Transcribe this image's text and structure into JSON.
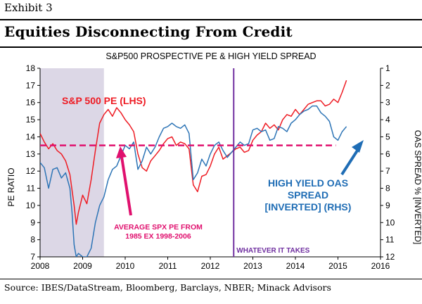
{
  "header": {
    "exhibit": "Exhibit 3",
    "title": "Equities Disconnecting From Credit",
    "source": "Source: IBES/DataStream, Bloomberg, Barclays, NBER; Minack Advisors"
  },
  "chart_data": {
    "type": "line",
    "title": "S&P500 PROSPECTIVE PE & HIGH YIELD SPREAD",
    "ylabel": "PE RATIO",
    "y2label": "OAS SPREAD % [INVERTED]",
    "ylim": [
      7,
      18
    ],
    "y2lim": [
      12,
      1
    ],
    "xlim": [
      2008,
      2016
    ],
    "x_ticks": [
      "2008",
      "2009",
      "2010",
      "2011",
      "2012",
      "2013",
      "2014",
      "2015",
      "2016"
    ],
    "y_ticks": [
      "7",
      "8",
      "9",
      "10",
      "11",
      "12",
      "13",
      "14",
      "15",
      "16",
      "17",
      "18"
    ],
    "y2_ticks": [
      "1",
      "2",
      "3",
      "4",
      "5",
      "6",
      "7",
      "8",
      "9",
      "10",
      "11",
      "12"
    ],
    "recession_band": [
      2008.0,
      2009.5
    ],
    "reference_line": {
      "value": 13.5,
      "label": "AVERAGE SPX PE FROM 1985 EX 1998-2006",
      "color": "#e0106e"
    },
    "event_line": {
      "x": 2012.55,
      "label": "WHATEVER IT TAKES",
      "color": "#7030a0"
    },
    "series": [
      {
        "name": "S&P 500 PE (LHS)",
        "axis": "left",
        "color": "#ee1c24",
        "x": [
          2008.0,
          2008.1,
          2008.2,
          2008.3,
          2008.4,
          2008.5,
          2008.6,
          2008.7,
          2008.8,
          2008.85,
          2008.9,
          2009.0,
          2009.1,
          2009.2,
          2009.3,
          2009.4,
          2009.5,
          2009.6,
          2009.7,
          2009.8,
          2009.9,
          2010.0,
          2010.1,
          2010.2,
          2010.3,
          2010.4,
          2010.5,
          2010.6,
          2010.7,
          2010.8,
          2010.9,
          2011.0,
          2011.1,
          2011.2,
          2011.3,
          2011.4,
          2011.5,
          2011.6,
          2011.7,
          2011.8,
          2011.9,
          2012.0,
          2012.1,
          2012.2,
          2012.3,
          2012.4,
          2012.5,
          2012.6,
          2012.7,
          2012.8,
          2012.9,
          2013.0,
          2013.1,
          2013.2,
          2013.3,
          2013.4,
          2013.5,
          2013.6,
          2013.7,
          2013.8,
          2013.9,
          2014.0,
          2014.1,
          2014.2,
          2014.3,
          2014.4,
          2014.5,
          2014.6,
          2014.7,
          2014.8,
          2014.9,
          2015.0,
          2015.1,
          2015.2
        ],
        "y": [
          14.2,
          13.7,
          13.3,
          13.6,
          13.2,
          13.0,
          12.6,
          11.8,
          10.0,
          8.9,
          9.6,
          10.6,
          10.1,
          11.5,
          13.2,
          14.8,
          15.3,
          15.6,
          15.2,
          15.7,
          15.4,
          15.0,
          14.7,
          14.3,
          13.0,
          12.2,
          12.0,
          12.6,
          12.9,
          13.2,
          13.6,
          13.9,
          14.0,
          13.5,
          13.7,
          13.6,
          13.3,
          11.2,
          10.8,
          11.7,
          11.8,
          12.3,
          13.0,
          13.4,
          12.7,
          12.9,
          13.1,
          13.3,
          13.4,
          13.1,
          13.2,
          13.8,
          14.1,
          14.3,
          14.8,
          14.5,
          14.7,
          14.4,
          15.0,
          15.3,
          15.2,
          15.6,
          15.3,
          15.6,
          15.9,
          16.0,
          16.1,
          16.1,
          15.8,
          15.9,
          16.2,
          16.0,
          16.6,
          17.3
        ]
      },
      {
        "name": "HIGH YIELD OAS SPREAD [INVERTED] (RHS)",
        "axis": "right",
        "color": "#2e75b6",
        "x": [
          2008.0,
          2008.1,
          2008.2,
          2008.3,
          2008.4,
          2008.5,
          2008.6,
          2008.7,
          2008.75,
          2008.8,
          2008.85,
          2008.9,
          2009.0,
          2009.1,
          2009.2,
          2009.3,
          2009.4,
          2009.5,
          2009.6,
          2009.7,
          2009.8,
          2009.9,
          2010.0,
          2010.1,
          2010.2,
          2010.3,
          2010.4,
          2010.5,
          2010.6,
          2010.7,
          2010.8,
          2010.9,
          2011.0,
          2011.1,
          2011.2,
          2011.3,
          2011.4,
          2011.5,
          2011.6,
          2011.7,
          2011.8,
          2011.9,
          2012.0,
          2012.1,
          2012.2,
          2012.3,
          2012.4,
          2012.5,
          2012.6,
          2012.7,
          2012.8,
          2012.9,
          2013.0,
          2013.1,
          2013.2,
          2013.3,
          2013.4,
          2013.5,
          2013.6,
          2013.7,
          2013.8,
          2013.9,
          2014.0,
          2014.1,
          2014.2,
          2014.3,
          2014.4,
          2014.5,
          2014.6,
          2014.7,
          2014.8,
          2014.9,
          2015.0,
          2015.1,
          2015.2
        ],
        "y": [
          6.5,
          6.8,
          8.0,
          6.9,
          6.8,
          7.4,
          7.1,
          8.0,
          9.4,
          11.3,
          12.0,
          11.8,
          12.0,
          12.0,
          11.5,
          10.0,
          9.0,
          8.5,
          7.5,
          6.9,
          6.7,
          6.1,
          5.5,
          5.7,
          5.3,
          6.9,
          6.4,
          5.6,
          6.0,
          5.6,
          5.0,
          4.5,
          4.4,
          4.2,
          4.4,
          4.5,
          4.3,
          4.8,
          7.5,
          7.1,
          6.3,
          6.7,
          6.0,
          5.5,
          5.3,
          5.8,
          6.2,
          5.9,
          5.6,
          5.3,
          5.5,
          5.4,
          4.6,
          4.5,
          4.7,
          4.6,
          5.2,
          5.1,
          4.4,
          4.5,
          4.7,
          4.2,
          4.0,
          3.7,
          3.5,
          3.4,
          3.2,
          3.2,
          3.6,
          3.8,
          4.1,
          5.0,
          5.2,
          4.7,
          4.4
        ]
      }
    ]
  }
}
